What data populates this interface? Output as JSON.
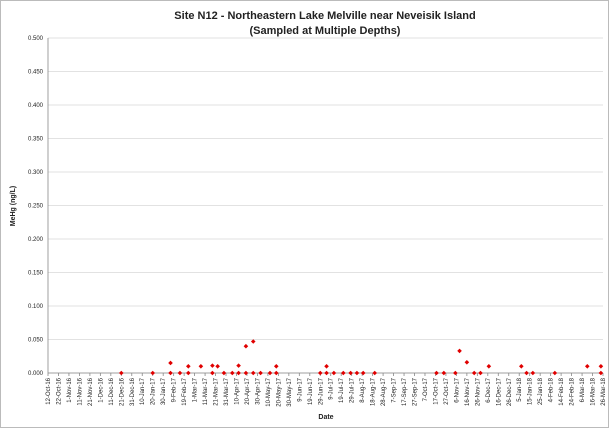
{
  "chart_data": {
    "type": "scatter",
    "title": "Site N12 -  Northeastern Lake Melville near Neveisik Island",
    "subtitle": "(Sampled at Multiple Depths)",
    "y_label": "MeHg (ng/L)",
    "x_label": "Date",
    "color": "#e00000",
    "grid": true,
    "x": [
      "2016-12-21",
      "2017-01-20",
      "2017-02-06",
      "2017-02-06",
      "2017-02-15",
      "2017-02-23",
      "2017-02-23",
      "2017-03-07",
      "2017-03-18",
      "2017-03-18",
      "2017-03-23",
      "2017-03-29",
      "2017-04-06",
      "2017-04-12",
      "2017-04-12",
      "2017-04-19",
      "2017-04-19",
      "2017-04-26",
      "2017-04-26",
      "2017-05-03",
      "2017-05-12",
      "2017-05-18",
      "2017-05-18",
      "2017-06-29",
      "2017-07-05",
      "2017-07-05",
      "2017-07-12",
      "2017-07-21",
      "2017-07-28",
      "2017-08-03",
      "2017-08-09",
      "2017-08-20",
      "2017-10-18",
      "2017-10-25",
      "2017-11-05",
      "2017-11-09",
      "2017-11-16",
      "2017-11-23",
      "2017-11-29",
      "2017-12-07",
      "2018-01-07",
      "2018-01-12",
      "2018-01-18",
      "2018-02-08",
      "2018-03-11",
      "2018-03-24",
      "2018-03-24"
    ],
    "values": [
      0,
      0,
      0.015,
      0,
      0,
      0.01,
      0,
      0.01,
      0.011,
      0,
      0.01,
      0,
      0,
      0.011,
      0,
      0.04,
      0,
      0.047,
      0,
      0,
      0,
      0.01,
      0,
      0,
      0.01,
      0,
      0,
      0,
      0,
      0,
      0,
      0,
      0,
      0,
      0,
      0.033,
      0.016,
      0,
      0,
      0.01,
      0.01,
      0,
      0,
      0,
      0.01,
      0.01,
      0
    ],
    "xlim": [
      "2016-10-12",
      "2018-03-26"
    ],
    "ylim": [
      0,
      0.5
    ],
    "yticks": [
      {
        "value": 0,
        "label": "0.000"
      },
      {
        "value": 0.05,
        "label": "0.050"
      },
      {
        "value": 0.1,
        "label": "0.100"
      },
      {
        "value": 0.15,
        "label": "0.150"
      },
      {
        "value": 0.2,
        "label": "0.200"
      },
      {
        "value": 0.25,
        "label": "0.250"
      },
      {
        "value": 0.3,
        "label": "0.300"
      },
      {
        "value": 0.35,
        "label": "0.350"
      },
      {
        "value": 0.4,
        "label": "0.400"
      },
      {
        "value": 0.45,
        "label": "0.450"
      },
      {
        "value": 0.5,
        "label": "0.500"
      }
    ],
    "xticks": [
      {
        "value": "2016-10-12",
        "label": "12-Oct-16"
      },
      {
        "value": "2016-10-22",
        "label": "22-Oct-16"
      },
      {
        "value": "2016-11-01",
        "label": "1-Nov-16"
      },
      {
        "value": "2016-11-11",
        "label": "11-Nov-16"
      },
      {
        "value": "2016-11-21",
        "label": "21-Nov-16"
      },
      {
        "value": "2016-12-01",
        "label": "1-Dec-16"
      },
      {
        "value": "2016-12-11",
        "label": "11-Dec-16"
      },
      {
        "value": "2016-12-21",
        "label": "21-Dec-16"
      },
      {
        "value": "2016-12-31",
        "label": "31-Dec-16"
      },
      {
        "value": "2017-01-10",
        "label": "10-Jan-17"
      },
      {
        "value": "2017-01-20",
        "label": "20-Jan-17"
      },
      {
        "value": "2017-01-30",
        "label": "30-Jan-17"
      },
      {
        "value": "2017-02-09",
        "label": "9-Feb-17"
      },
      {
        "value": "2017-02-19",
        "label": "19-Feb-17"
      },
      {
        "value": "2017-03-01",
        "label": "1-Mar-17"
      },
      {
        "value": "2017-03-11",
        "label": "11-Mar-17"
      },
      {
        "value": "2017-03-21",
        "label": "21-Mar-17"
      },
      {
        "value": "2017-03-31",
        "label": "31-Mar-17"
      },
      {
        "value": "2017-04-10",
        "label": "10-Apr-17"
      },
      {
        "value": "2017-04-20",
        "label": "20-Apr-17"
      },
      {
        "value": "2017-04-30",
        "label": "30-Apr-17"
      },
      {
        "value": "2017-05-10",
        "label": "10-May-17"
      },
      {
        "value": "2017-05-20",
        "label": "20-May-17"
      },
      {
        "value": "2017-05-30",
        "label": "30-May-17"
      },
      {
        "value": "2017-06-09",
        "label": "9-Jun-17"
      },
      {
        "value": "2017-06-19",
        "label": "19-Jun-17"
      },
      {
        "value": "2017-06-29",
        "label": "29-Jun-17"
      },
      {
        "value": "2017-07-09",
        "label": "9-Jul-17"
      },
      {
        "value": "2017-07-19",
        "label": "19-Jul-17"
      },
      {
        "value": "2017-07-29",
        "label": "29-Jul-17"
      },
      {
        "value": "2017-08-08",
        "label": "8-Aug-17"
      },
      {
        "value": "2017-08-18",
        "label": "18-Aug-17"
      },
      {
        "value": "2017-08-28",
        "label": "28-Aug-17"
      },
      {
        "value": "2017-09-07",
        "label": "7-Sep-17"
      },
      {
        "value": "2017-09-17",
        "label": "17-Sep-17"
      },
      {
        "value": "2017-09-27",
        "label": "27-Sep-17"
      },
      {
        "value": "2017-10-07",
        "label": "7-Oct-17"
      },
      {
        "value": "2017-10-17",
        "label": "17-Oct-17"
      },
      {
        "value": "2017-10-27",
        "label": "27-Oct-17"
      },
      {
        "value": "2017-11-06",
        "label": "6-Nov-17"
      },
      {
        "value": "2017-11-16",
        "label": "16-Nov-17"
      },
      {
        "value": "2017-11-26",
        "label": "26-Nov-17"
      },
      {
        "value": "2017-12-06",
        "label": "6-Dec-17"
      },
      {
        "value": "2017-12-16",
        "label": "16-Dec-17"
      },
      {
        "value": "2017-12-26",
        "label": "26-Dec-17"
      },
      {
        "value": "2018-01-05",
        "label": "5-Jan-18"
      },
      {
        "value": "2018-01-15",
        "label": "15-Jan-18"
      },
      {
        "value": "2018-01-25",
        "label": "25-Jan-18"
      },
      {
        "value": "2018-02-04",
        "label": "4-Feb-18"
      },
      {
        "value": "2018-02-14",
        "label": "14-Feb-18"
      },
      {
        "value": "2018-02-24",
        "label": "24-Feb-18"
      },
      {
        "value": "2018-03-06",
        "label": "6-Mar-18"
      },
      {
        "value": "2018-03-16",
        "label": "16-Mar-18"
      },
      {
        "value": "2018-03-26",
        "label": "26-Mar-18"
      }
    ]
  }
}
